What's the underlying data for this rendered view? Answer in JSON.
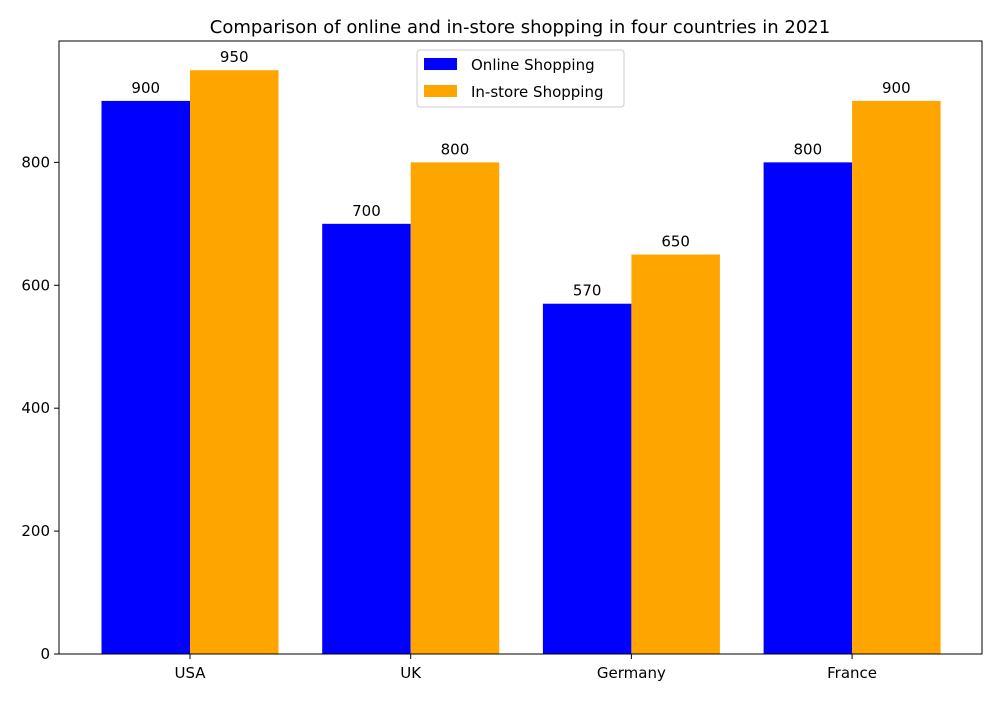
{
  "chart_data": {
    "type": "bar",
    "title": "Comparison of online and in-store shopping in four countries in 2021",
    "xlabel": "",
    "ylabel": "",
    "categories": [
      "USA",
      "UK",
      "Germany",
      "France"
    ],
    "series": [
      {
        "name": "Online Shopping",
        "values": [
          900,
          700,
          570,
          800
        ],
        "color": "#0000ff"
      },
      {
        "name": "In-store Shopping",
        "values": [
          950,
          800,
          650,
          900
        ],
        "color": "#ffa500"
      }
    ],
    "ylim": [
      0,
      997.5
    ],
    "yticks": [
      0,
      200,
      400,
      600,
      800
    ],
    "grid": false,
    "legend": "top-center",
    "data_labels": true
  }
}
